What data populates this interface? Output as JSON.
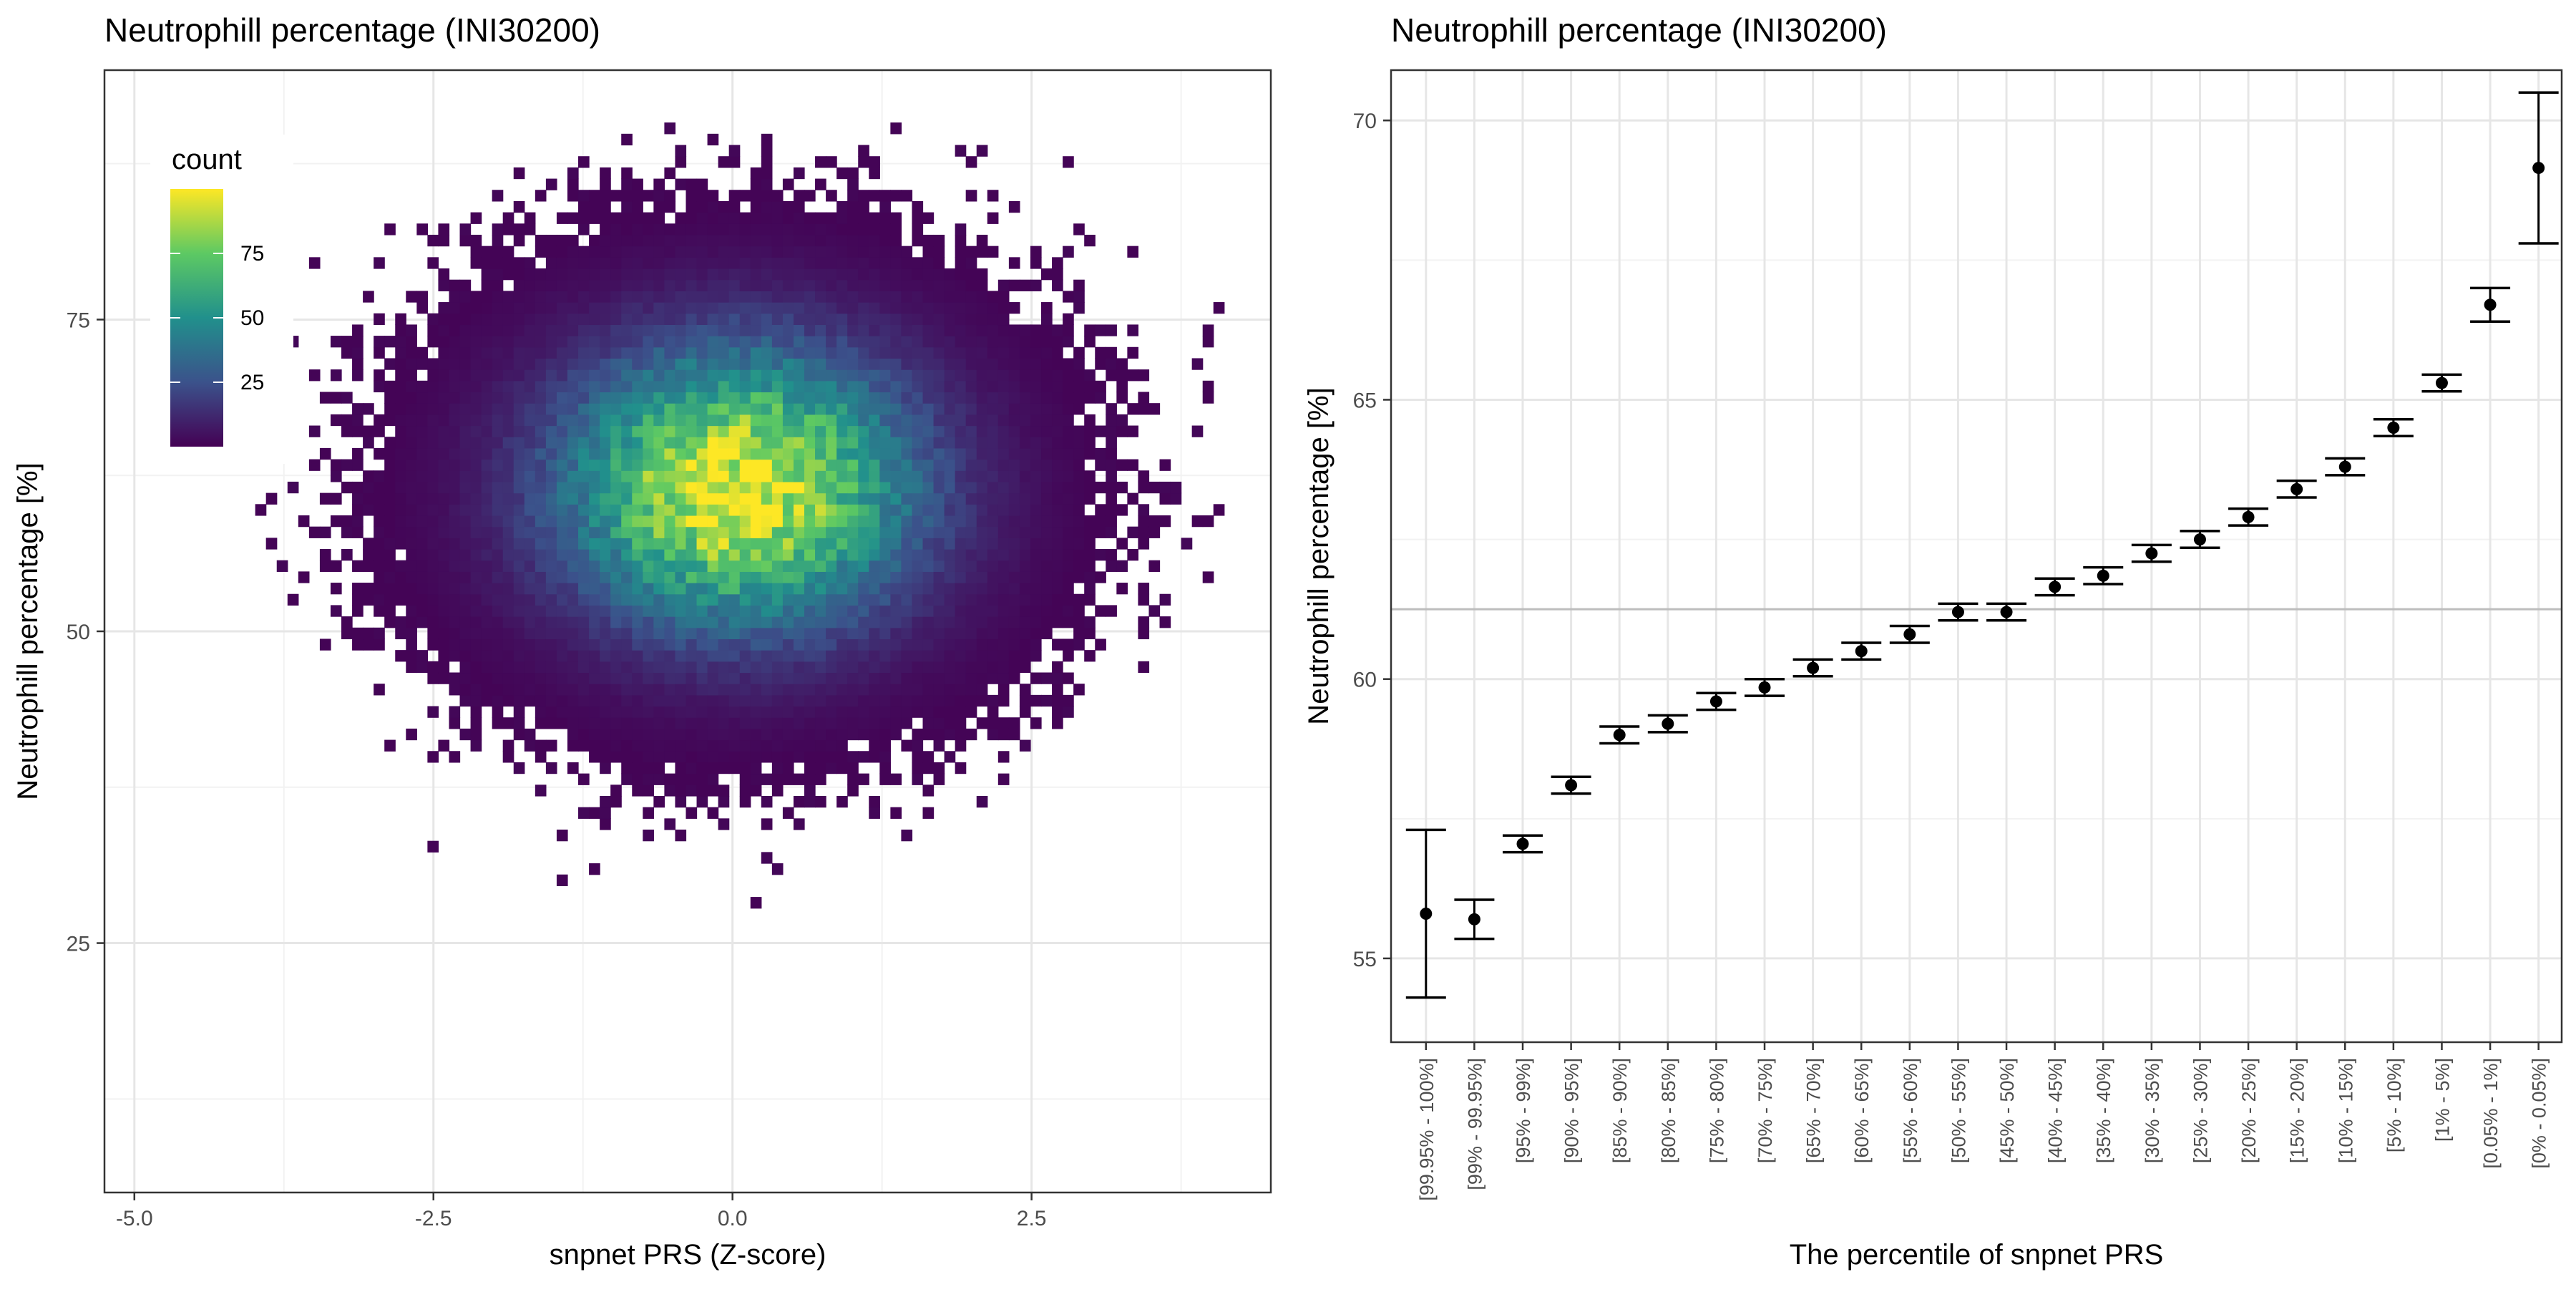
{
  "chart_data": [
    {
      "type": "heatmap",
      "title": "Neutrophill percentage (INI30200)",
      "xlabel": "snpnet PRS (Z-score)",
      "ylabel": "Neutrophill percentage [%]",
      "xlim": [
        -5.25,
        4.5
      ],
      "ylim": [
        5,
        95
      ],
      "xticks": [
        -5.0,
        -2.5,
        0.0,
        2.5
      ],
      "xtick_labels": [
        "-5.0",
        "-2.5",
        "0.0",
        "2.5"
      ],
      "yticks": [
        25,
        50,
        75
      ],
      "ytick_labels": [
        "25",
        "50",
        "75"
      ],
      "grid": true,
      "colormap": "viridis",
      "colormap_stops": [
        "#440154",
        "#3b528b",
        "#21908c",
        "#5dc963",
        "#fde725"
      ],
      "legend": {
        "title": "count",
        "placement": "top-left inside",
        "range": [
          0,
          100
        ],
        "ticks": [
          25,
          50,
          75
        ],
        "tick_labels": [
          "25",
          "50",
          "75"
        ]
      },
      "density_summary": {
        "center_x": 0.05,
        "center_y": 61.5,
        "sd_x": 1.0,
        "sd_y": 7.5,
        "peak_count": 100,
        "x_extent": [
          -4.8,
          4.1
        ],
        "y_extent": [
          8,
          90
        ]
      }
    },
    {
      "type": "scatter",
      "title": "Neutrophill percentage (INI30200)",
      "xlabel": "The percentile of snpnet PRS",
      "ylabel": "Neutrophill percentage [%]",
      "ylim": [
        53.5,
        70.9
      ],
      "yticks": [
        55,
        60,
        65,
        70
      ],
      "ytick_labels": [
        "55",
        "60",
        "65",
        "70"
      ],
      "grid": true,
      "reference_line": 61.25,
      "categories": [
        "[99.95% - 100%]",
        "[99% - 99.95%]",
        "[95% - 99%]",
        "[90% - 95%]",
        "[85% - 90%]",
        "[80% - 85%]",
        "[75% - 80%]",
        "[70% - 75%]",
        "[65% - 70%]",
        "[60% - 65%]",
        "[55% - 60%]",
        "[50% - 55%]",
        "[45% - 50%]",
        "[40% - 45%]",
        "[35% - 40%]",
        "[30% - 35%]",
        "[25% - 30%]",
        "[20% - 25%]",
        "[15% - 20%]",
        "[10% - 15%]",
        "[5% - 10%]",
        "[1% - 5%]",
        "[0.05% - 1%]",
        "[0% - 0.05%]"
      ],
      "values": [
        55.8,
        55.7,
        57.05,
        58.1,
        59.0,
        59.2,
        59.6,
        59.85,
        60.2,
        60.5,
        60.8,
        61.2,
        61.2,
        61.65,
        61.85,
        62.25,
        62.5,
        62.9,
        63.4,
        63.8,
        64.5,
        65.3,
        66.7,
        69.15
      ],
      "lower": [
        54.3,
        55.35,
        56.9,
        57.95,
        58.85,
        59.05,
        59.45,
        59.7,
        60.05,
        60.35,
        60.65,
        61.05,
        61.05,
        61.5,
        61.7,
        62.1,
        62.35,
        62.75,
        63.25,
        63.65,
        64.35,
        65.15,
        66.4,
        67.8
      ],
      "upper": [
        57.3,
        56.05,
        57.2,
        58.25,
        59.15,
        59.35,
        59.75,
        60.0,
        60.35,
        60.65,
        60.95,
        61.35,
        61.35,
        61.8,
        62.0,
        62.4,
        62.65,
        63.05,
        63.55,
        63.95,
        64.65,
        65.45,
        67.0,
        70.5
      ]
    }
  ]
}
